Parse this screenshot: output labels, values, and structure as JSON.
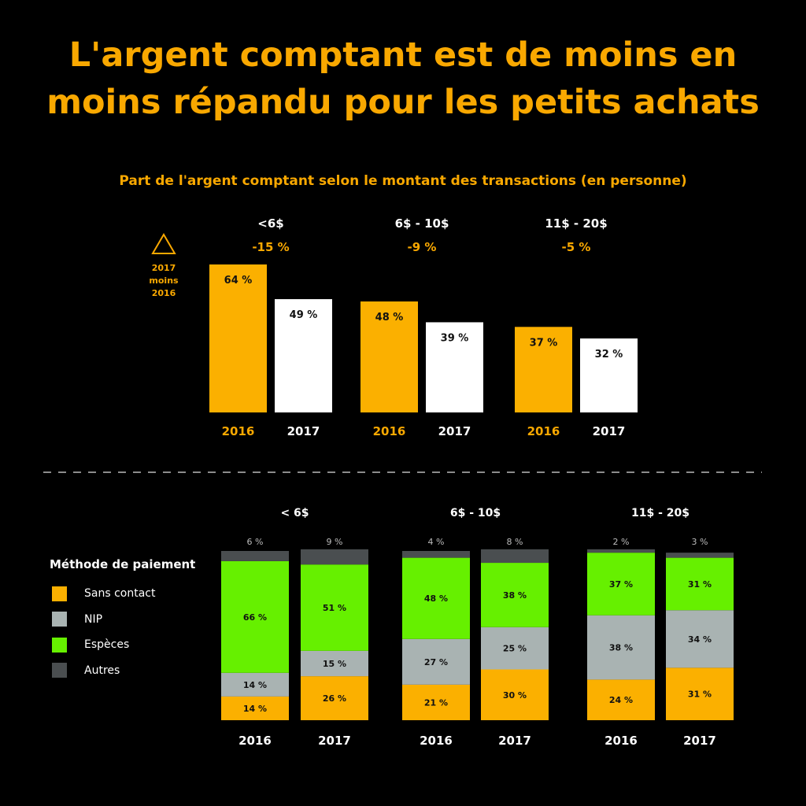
{
  "title_line1": "L'argent comptant est de moins en",
  "title_line2": "moins répandu pour les petits achats",
  "colors": {
    "orange": "#fbb000",
    "white": "#ffffff",
    "green": "#66f000",
    "grey": "#a9b3b2",
    "dark": "#4a4e50",
    "accent": "#f9a800"
  },
  "chart_data": [
    {
      "type": "bar",
      "title": "Part de l'argent comptant selon le montant des transactions (en personne)",
      "delta_legend": [
        "2017",
        "moins",
        "2016"
      ],
      "delta_icon": "triangle-icon",
      "categories": [
        "<6$",
        "6$ - 10$",
        "11$ - 20$"
      ],
      "deltas": [
        "-15 %",
        "-9 %",
        "-5 %"
      ],
      "series": [
        {
          "name": "2016",
          "values": [
            64,
            48,
            37
          ]
        },
        {
          "name": "2017",
          "values": [
            49,
            39,
            32
          ]
        }
      ],
      "ylim": [
        0,
        70
      ]
    },
    {
      "type": "stacked-bar",
      "legend_title": "Méthode de paiement",
      "legend": [
        "Sans contact",
        "NIP",
        "Espèces",
        "Autres"
      ],
      "categories": [
        "< 6$",
        "6$ - 10$",
        "11$ - 20$"
      ],
      "years": [
        "2016",
        "2017"
      ],
      "groups": [
        [
          [
            14,
            14,
            66,
            6
          ],
          [
            26,
            15,
            51,
            9
          ]
        ],
        [
          [
            21,
            27,
            48,
            4
          ],
          [
            30,
            25,
            38,
            8
          ]
        ],
        [
          [
            24,
            38,
            37,
            2
          ],
          [
            31,
            34,
            31,
            3
          ]
        ]
      ],
      "ylim": [
        0,
        100
      ]
    }
  ]
}
